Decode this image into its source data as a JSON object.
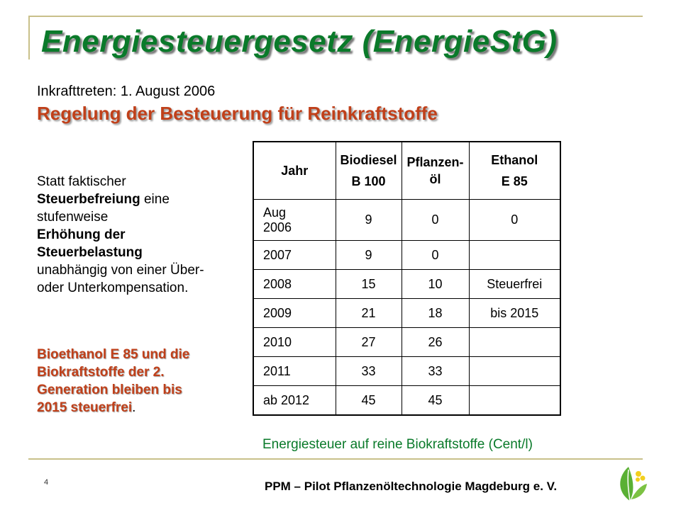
{
  "title": "Energiesteuergesetz (EnergieStG)",
  "effective_date": "Inkrafttreten: 1. August 2006",
  "subtitle": "Regelung der Besteuerung für Reinkraftstoffe",
  "left_text": {
    "p1": "Statt faktischer",
    "p2_bold": "Steuerbefreiung",
    "p2_rest": " eine stufenweise",
    "p3_bold": "Erhöhung der Steuerbelastung",
    "p4": "unabhängig von einer Über- oder Unterkompensation."
  },
  "bioethanol_note": {
    "red_text": "Bioethanol E 85 und die Biokraftstoffe der 2. Generation bleiben bis 2015 steuerfrei",
    "end": "."
  },
  "table": {
    "headers": {
      "jahr": "Jahr",
      "biodiesel_l1": "Biodiesel",
      "biodiesel_l2": "B 100",
      "pflanzenoel_l1": "Pflanzen-",
      "pflanzenoel_l2": "öl",
      "ethanol_l1": "Ethanol",
      "ethanol_l2": "E 85"
    },
    "rows": [
      {
        "jahr_l1": "Aug",
        "jahr_l2": "2006",
        "biodiesel": "9",
        "pflanzenoel": "0",
        "ethanol": "0"
      },
      {
        "jahr": "2007",
        "biodiesel": "9",
        "pflanzenoel": "0",
        "ethanol": ""
      },
      {
        "jahr": "2008",
        "biodiesel": "15",
        "pflanzenoel": "10",
        "ethanol": "Steuerfrei"
      },
      {
        "jahr": "2009",
        "biodiesel": "21",
        "pflanzenoel": "18",
        "ethanol": "bis 2015"
      },
      {
        "jahr": "2010",
        "biodiesel": "27",
        "pflanzenoel": "26",
        "ethanol": ""
      },
      {
        "jahr": "2011",
        "biodiesel": "33",
        "pflanzenoel": "33",
        "ethanol": ""
      },
      {
        "jahr": "ab 2012",
        "biodiesel": "45",
        "pflanzenoel": "45",
        "ethanol": ""
      }
    ],
    "caption": "Energiesteuer auf reine Biokraftstoffe (Cent/l)"
  },
  "page_number": "4",
  "footer": "PPM – Pilot Pflanzenöltechnologie Magdeburg e. V.",
  "colors": {
    "title_green": "#0a7a2a",
    "accent_red": "#c0401a",
    "frame_gold": "#c9c08a",
    "logo_green": "#5ab034",
    "logo_yellow": "#f2cf1e"
  },
  "logo_icon": "plant-leaf-icon"
}
